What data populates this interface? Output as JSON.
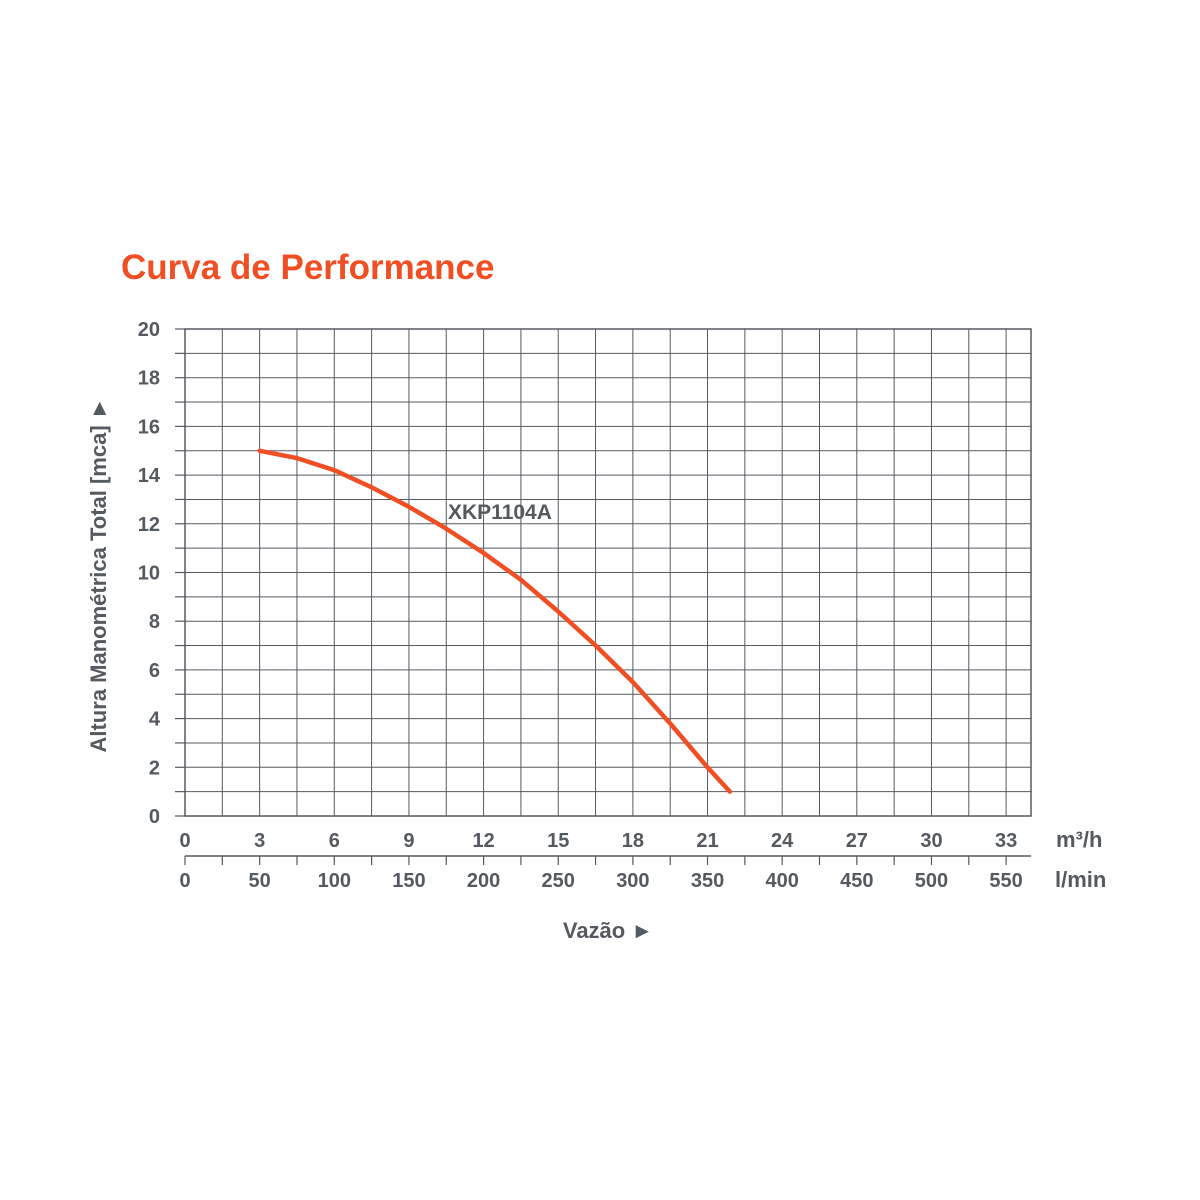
{
  "chart_data": {
    "type": "line",
    "title": "Curva de Performance",
    "ylabel": "Altura Manométrica Total [mca]",
    "xlabel": "Vazão",
    "ylim": [
      0,
      20
    ],
    "y_ticks": [
      "0",
      "2",
      "4",
      "6",
      "8",
      "10",
      "12",
      "14",
      "16",
      "18",
      "20"
    ],
    "xlim": [
      0,
      34
    ],
    "x_ticks_primary": {
      "unit": "m³/h",
      "values": [
        0,
        3,
        6,
        9,
        12,
        15,
        18,
        21,
        24,
        27,
        30,
        33
      ],
      "labels": [
        "0",
        "3",
        "6",
        "9",
        "12",
        "15",
        "18",
        "21",
        "24",
        "27",
        "30",
        "33"
      ]
    },
    "x_ticks_secondary": {
      "unit": "l/min",
      "values": [
        0,
        50,
        100,
        150,
        200,
        250,
        300,
        350,
        400,
        450,
        500,
        550
      ],
      "labels": [
        "0",
        "50",
        "100",
        "150",
        "200",
        "250",
        "300",
        "350",
        "400",
        "450",
        "500",
        "550"
      ]
    },
    "grid": true,
    "series": [
      {
        "name": "XKP1104A",
        "color": "#f04e23",
        "x": [
          3,
          4.5,
          6,
          7.5,
          9,
          10.5,
          12,
          13.5,
          15,
          16.5,
          18,
          19.5,
          21,
          21.9
        ],
        "y": [
          15.0,
          14.7,
          14.2,
          13.5,
          12.7,
          11.8,
          10.8,
          9.7,
          8.4,
          7.0,
          5.5,
          3.8,
          2.0,
          1.0
        ]
      }
    ]
  }
}
